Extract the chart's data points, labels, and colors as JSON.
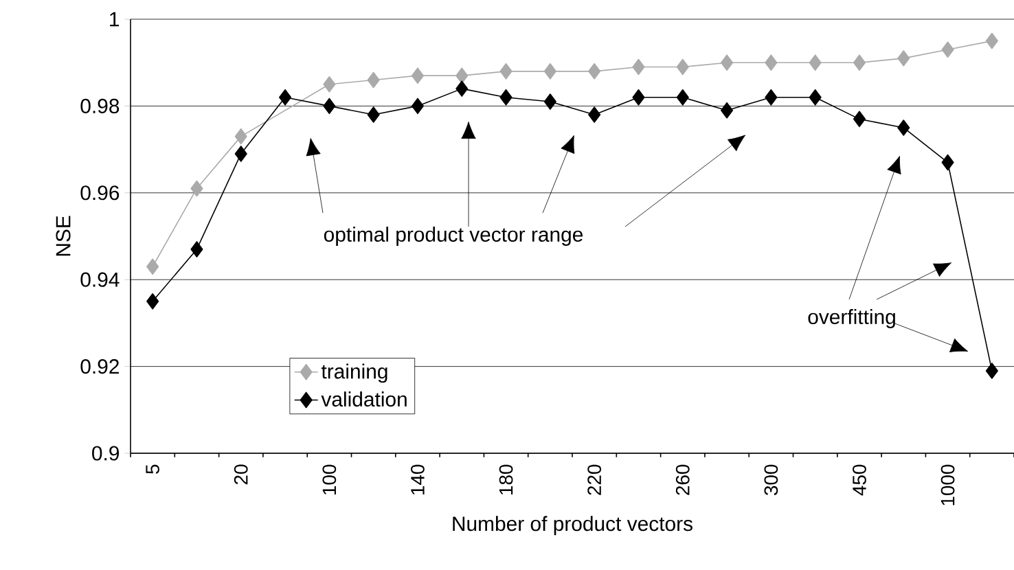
{
  "chart_data": {
    "type": "line",
    "xlabel": "Number of product vectors",
    "ylabel": "NSE",
    "categories": [
      "5",
      null,
      "20",
      null,
      "100",
      null,
      "140",
      null,
      "180",
      null,
      "220",
      null,
      "260",
      null,
      "300",
      null,
      "450",
      null,
      "1000",
      null
    ],
    "series": [
      {
        "name": "training",
        "color": "#aaaaaa",
        "values": [
          0.943,
          0.961,
          0.973,
          null,
          0.985,
          0.986,
          0.987,
          0.987,
          0.988,
          0.988,
          0.988,
          0.989,
          0.989,
          0.99,
          0.99,
          0.99,
          0.99,
          0.991,
          0.993,
          0.995
        ]
      },
      {
        "name": "validation",
        "color": "#000000",
        "values": [
          0.935,
          0.947,
          0.969,
          0.982,
          0.98,
          0.978,
          0.98,
          0.984,
          0.982,
          0.981,
          0.978,
          0.982,
          0.982,
          0.979,
          0.982,
          0.982,
          0.977,
          0.975,
          0.967,
          0.919
        ]
      }
    ],
    "ylim": [
      0.9,
      1
    ],
    "yticks": [
      0.9,
      0.92,
      0.94,
      0.96,
      0.98,
      1
    ],
    "grid": "y",
    "legend": "bottom left",
    "marker": "diamond",
    "line_style": "solid",
    "annotations": [
      "optimal product vector range",
      "overfitting"
    ]
  }
}
